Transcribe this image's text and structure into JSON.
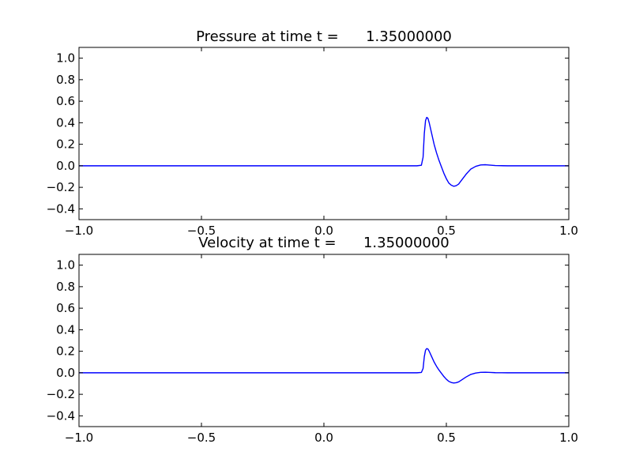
{
  "chart_data": [
    {
      "type": "line",
      "title": "Pressure at time t =      1.35000000",
      "xlabel": "",
      "ylabel": "",
      "xlim": [
        -1.0,
        1.0
      ],
      "ylim": [
        -0.5,
        1.1
      ],
      "xticks": [
        -1.0,
        -0.5,
        0.0,
        0.5,
        1.0
      ],
      "xtick_labels": [
        "−1.0",
        "−0.5",
        "0.0",
        "0.5",
        "1.0"
      ],
      "yticks": [
        -0.4,
        -0.2,
        0.0,
        0.2,
        0.4,
        0.6,
        0.8,
        1.0
      ],
      "ytick_labels": [
        "−0.4",
        "−0.2",
        "0.0",
        "0.2",
        "0.4",
        "0.6",
        "0.8",
        "1.0"
      ],
      "grid": false,
      "series": [
        {
          "color": "#0000ff",
          "x": [
            -1.0,
            0.38,
            0.398,
            0.405,
            0.41,
            0.415,
            0.42,
            0.425,
            0.43,
            0.44,
            0.45,
            0.46,
            0.47,
            0.48,
            0.49,
            0.5,
            0.51,
            0.52,
            0.53,
            0.54,
            0.55,
            0.56,
            0.58,
            0.6,
            0.62,
            0.64,
            0.66,
            0.68,
            0.7,
            0.75,
            0.8,
            1.0
          ],
          "y": [
            0.0,
            0.0,
            0.005,
            0.08,
            0.3,
            0.42,
            0.45,
            0.44,
            0.4,
            0.3,
            0.2,
            0.12,
            0.05,
            -0.01,
            -0.07,
            -0.12,
            -0.16,
            -0.18,
            -0.19,
            -0.185,
            -0.17,
            -0.14,
            -0.08,
            -0.03,
            -0.005,
            0.008,
            0.01,
            0.006,
            0.002,
            0.0,
            0.0,
            0.0
          ]
        }
      ]
    },
    {
      "type": "line",
      "title": "Velocity at time t =      1.35000000",
      "xlabel": "",
      "ylabel": "",
      "xlim": [
        -1.0,
        1.0
      ],
      "ylim": [
        -0.5,
        1.1
      ],
      "xticks": [
        -1.0,
        -0.5,
        0.0,
        0.5,
        1.0
      ],
      "xtick_labels": [
        "−1.0",
        "−0.5",
        "0.0",
        "0.5",
        "1.0"
      ],
      "yticks": [
        -0.4,
        -0.2,
        0.0,
        0.2,
        0.4,
        0.6,
        0.8,
        1.0
      ],
      "ytick_labels": [
        "−0.4",
        "−0.2",
        "0.0",
        "0.2",
        "0.4",
        "0.6",
        "0.8",
        "1.0"
      ],
      "grid": false,
      "series": [
        {
          "color": "#0000ff",
          "x": [
            -1.0,
            0.38,
            0.398,
            0.405,
            0.41,
            0.415,
            0.42,
            0.425,
            0.43,
            0.44,
            0.45,
            0.46,
            0.47,
            0.48,
            0.49,
            0.5,
            0.51,
            0.52,
            0.53,
            0.54,
            0.55,
            0.56,
            0.58,
            0.6,
            0.62,
            0.64,
            0.66,
            0.68,
            0.7,
            0.75,
            0.8,
            1.0
          ],
          "y": [
            0.0,
            0.0,
            0.003,
            0.04,
            0.15,
            0.21,
            0.225,
            0.22,
            0.2,
            0.15,
            0.1,
            0.06,
            0.025,
            -0.005,
            -0.035,
            -0.06,
            -0.08,
            -0.09,
            -0.095,
            -0.092,
            -0.085,
            -0.07,
            -0.04,
            -0.015,
            -0.002,
            0.004,
            0.005,
            0.003,
            0.001,
            0.0,
            0.0,
            0.0
          ]
        }
      ]
    }
  ]
}
